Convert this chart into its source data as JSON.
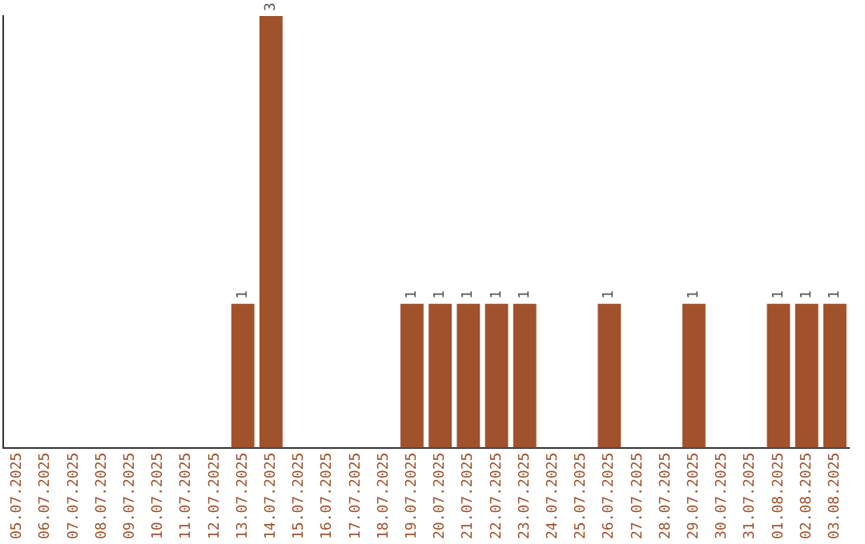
{
  "chart_data": {
    "type": "bar",
    "categories": [
      "05.07.2025",
      "06.07.2025",
      "07.07.2025",
      "08.07.2025",
      "09.07.2025",
      "10.07.2025",
      "11.07.2025",
      "12.07.2025",
      "13.07.2025",
      "14.07.2025",
      "15.07.2025",
      "16.07.2025",
      "17.07.2025",
      "18.07.2025",
      "19.07.2025",
      "20.07.2025",
      "21.07.2025",
      "22.07.2025",
      "23.07.2025",
      "24.07.2025",
      "25.07.2025",
      "26.07.2025",
      "27.07.2025",
      "28.07.2025",
      "29.07.2025",
      "30.07.2025",
      "31.07.2025",
      "01.08.2025",
      "02.08.2025",
      "03.08.2025"
    ],
    "values": [
      0,
      0,
      0,
      0,
      0,
      0,
      0,
      0,
      1,
      3,
      0,
      0,
      0,
      0,
      1,
      1,
      1,
      1,
      1,
      0,
      0,
      1,
      0,
      0,
      1,
      0,
      0,
      1,
      1,
      1
    ],
    "value_labels": [
      null,
      null,
      null,
      null,
      null,
      null,
      null,
      null,
      "1",
      "3",
      null,
      null,
      null,
      null,
      "1",
      "1",
      "1",
      "1",
      "1",
      null,
      null,
      "1",
      null,
      null,
      "1",
      null,
      null,
      "1",
      "1",
      "1"
    ],
    "color": "#a0522d",
    "grid": false,
    "legend": false
  }
}
